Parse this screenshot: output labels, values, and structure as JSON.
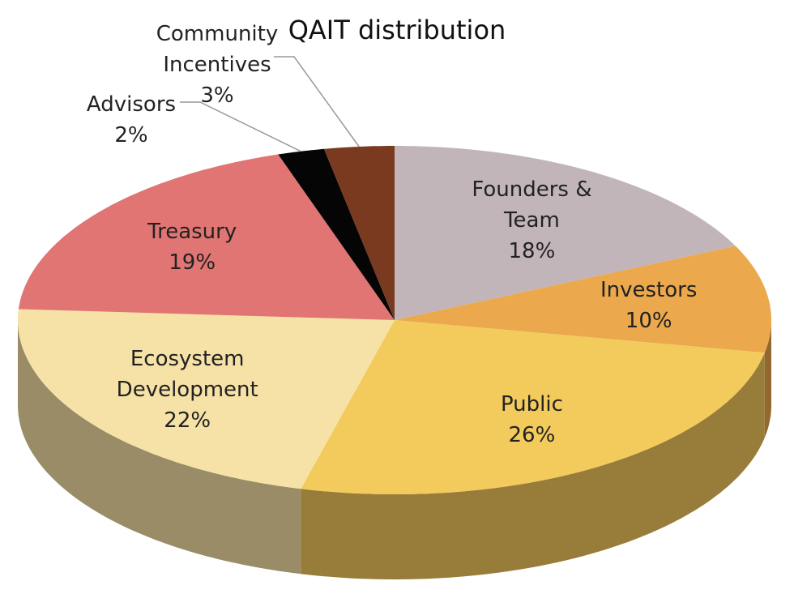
{
  "chart_data": {
    "type": "pie",
    "title": "QAIT distribution",
    "categories": [
      "Founders & Team",
      "Investors",
      "Public",
      "Ecosystem Development",
      "Treasury",
      "Advisors",
      "Community Incentives"
    ],
    "values": [
      18,
      10,
      26,
      22,
      19,
      2,
      3
    ],
    "value_labels": [
      "18%",
      "10%",
      "26%",
      "22%",
      "19%",
      "2%",
      "3%"
    ],
    "colors": [
      "#c1b5b9",
      "#eca84c",
      "#f3ca5c",
      "#f6e2a6",
      "#e07573",
      "#050505",
      "#7a3a20"
    ]
  }
}
